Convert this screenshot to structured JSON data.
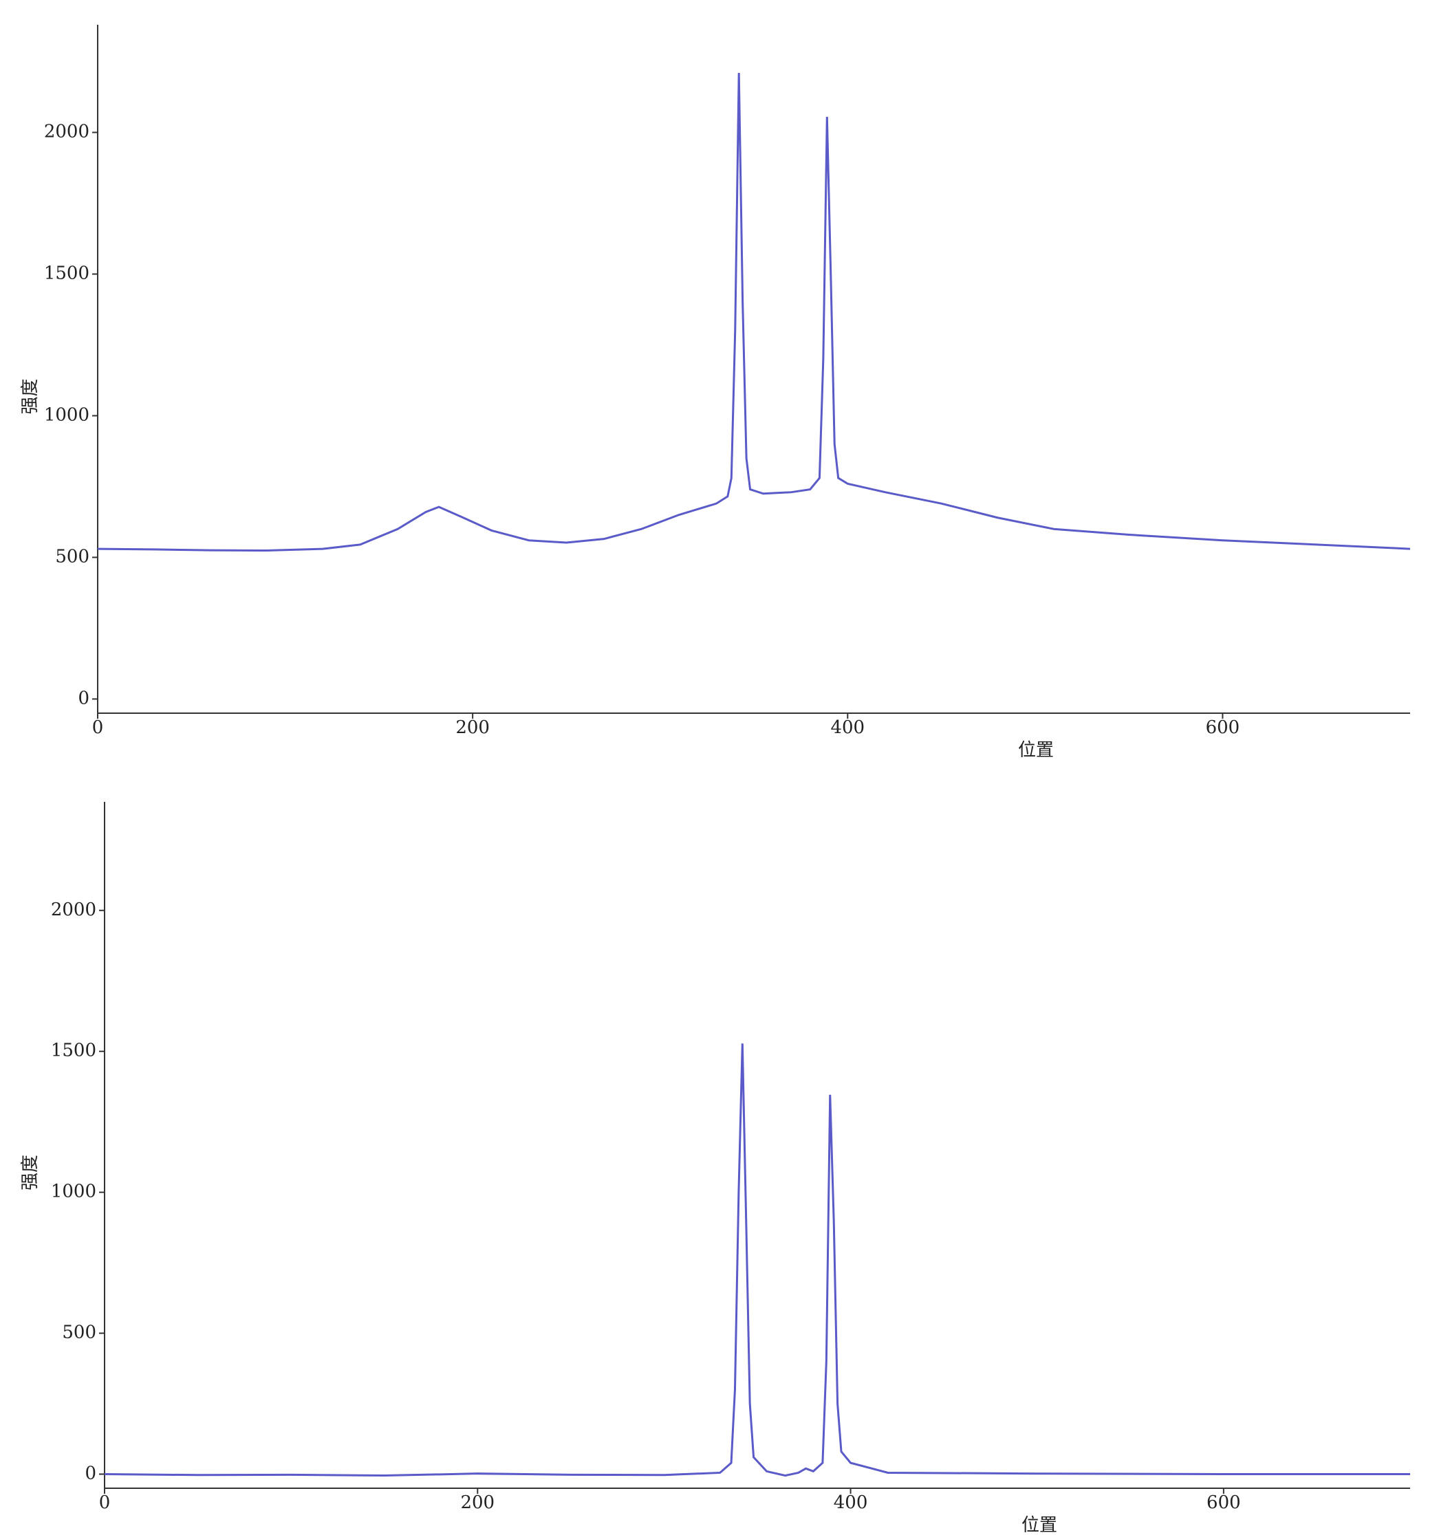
{
  "chart_data": [
    {
      "type": "line",
      "x_label": "位置",
      "y_label": "强度",
      "x": [
        0,
        30,
        60,
        90,
        120,
        140,
        160,
        175,
        182,
        195,
        210,
        230,
        250,
        270,
        290,
        310,
        330,
        336,
        338,
        340,
        342,
        344,
        346,
        348,
        355,
        370,
        380,
        385,
        387,
        389,
        391,
        393,
        395,
        400,
        420,
        450,
        480,
        510,
        550,
        600,
        650,
        700
      ],
      "series": [
        {
          "color": "#5a5ac8",
          "values": [
            530,
            528,
            525,
            524,
            530,
            545,
            600,
            660,
            678,
            640,
            595,
            560,
            552,
            565,
            600,
            650,
            690,
            715,
            780,
            1300,
            2210,
            1400,
            850,
            740,
            725,
            730,
            740,
            780,
            1200,
            2055,
            1500,
            900,
            780,
            760,
            730,
            690,
            640,
            600,
            580,
            560,
            545,
            530
          ]
        }
      ],
      "xlim": [
        0,
        700
      ],
      "xticks": [
        0,
        200,
        400,
        600
      ],
      "ylim": [
        -50,
        2380
      ],
      "yticks": [
        0,
        500,
        1000,
        1500,
        2000
      ]
    },
    {
      "type": "line",
      "x_label": "位置",
      "y_label": "强度",
      "x": [
        0,
        50,
        100,
        150,
        200,
        250,
        300,
        330,
        336,
        338,
        340,
        342,
        344,
        346,
        348,
        355,
        365,
        372,
        376,
        380,
        385,
        387,
        389,
        391,
        393,
        395,
        400,
        420,
        500,
        600,
        700
      ],
      "series": [
        {
          "color": "#5a5ac8",
          "values": [
            0,
            -3,
            -2,
            -5,
            2,
            -2,
            -3,
            5,
            40,
            300,
            1000,
            1528,
            900,
            250,
            60,
            10,
            -5,
            5,
            20,
            10,
            40,
            400,
            1346,
            900,
            250,
            80,
            40,
            5,
            2,
            0,
            0
          ]
        }
      ],
      "xlim": [
        0,
        700
      ],
      "xticks": [
        0,
        200,
        400,
        600
      ],
      "ylim": [
        -50,
        2385
      ],
      "yticks": [
        0,
        500,
        1000,
        1500,
        2000
      ]
    }
  ]
}
